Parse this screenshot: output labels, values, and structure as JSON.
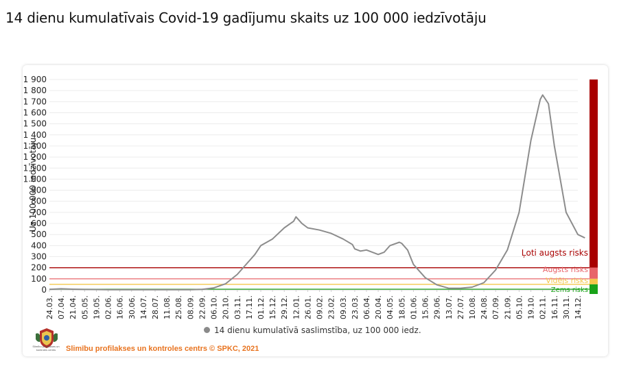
{
  "title": "14 dienu kumulatīvais Covid-19 gadījumu skaits uz 100 000 iedzīvotāju",
  "legend_label": "14 dienu kumulatīvā saslimstība, uz 100 000 iedz.",
  "footer": {
    "source": "Slimību profilakses un kontroles centrs © SPKC, 2021",
    "logo_text": "Slimību profilakses un kontroles centrs"
  },
  "colors": {
    "line": "#8c8c8c",
    "very_high": "#a80000",
    "high": "#e8646a",
    "medium": "#f3c74a",
    "low": "#19a319",
    "footer": "#e8731f"
  },
  "chart_data": {
    "type": "line",
    "title": "14 dienu kumulatīvais Covid-19 gadījumu skaits uz 100 000 iedzīvotāju",
    "ylabel": "Uz 100 000 iedzīvotāju",
    "ylim": [
      0,
      1900
    ],
    "y_ticks": [
      "0",
      "100",
      "200",
      "300",
      "400",
      "500",
      "600",
      "700",
      "800",
      "900",
      "1 000",
      "1 100",
      "1 200",
      "1 300",
      "1 400",
      "1 500",
      "1 600",
      "1 700",
      "1 800",
      "1 900"
    ],
    "x_ticks": [
      "24.03.",
      "07.04.",
      "21.04.",
      "05.05.",
      "19.05.",
      "02.06.",
      "16.06.",
      "30.06.",
      "14.07.",
      "28.07.",
      "11.08.",
      "25.08.",
      "08.09.",
      "22.09.",
      "06.10.",
      "20.10.",
      "03.11.",
      "17.11.",
      "01.12.",
      "15.12.",
      "29.12.",
      "12.01.",
      "26.01.",
      "09.02.",
      "23.02.",
      "09.03.",
      "23.03.",
      "06.04.",
      "20.04.",
      "04.05.",
      "18.05.",
      "01.06.",
      "15.06.",
      "29.06.",
      "13.07.",
      "27.07.",
      "10.08.",
      "24.08.",
      "07.09.",
      "21.09.",
      "05.10.",
      "19.10.",
      "02.11.",
      "16.11.",
      "30.11.",
      "14.12."
    ],
    "grid": true,
    "legend_position": "bottom",
    "series": [
      {
        "name": "14 dienu kumulatīvā saslimstība, uz 100 000 iedz.",
        "points": [
          [
            0,
            5
          ],
          [
            1,
            10
          ],
          [
            2,
            6
          ],
          [
            3,
            4
          ],
          [
            4,
            3
          ],
          [
            5,
            2
          ],
          [
            6,
            2
          ],
          [
            7,
            2
          ],
          [
            8,
            2
          ],
          [
            9,
            2
          ],
          [
            10,
            2
          ],
          [
            11,
            2
          ],
          [
            12,
            2
          ],
          [
            13,
            5
          ],
          [
            14,
            18
          ],
          [
            15,
            55
          ],
          [
            16,
            140
          ],
          [
            17,
            260
          ],
          [
            17.5,
            320
          ],
          [
            18,
            400
          ],
          [
            19,
            460
          ],
          [
            20,
            560
          ],
          [
            20.8,
            620
          ],
          [
            21,
            660
          ],
          [
            21.5,
            600
          ],
          [
            22,
            560
          ],
          [
            23,
            540
          ],
          [
            24,
            510
          ],
          [
            25,
            460
          ],
          [
            25.8,
            410
          ],
          [
            26,
            370
          ],
          [
            26.5,
            350
          ],
          [
            27,
            360
          ],
          [
            28,
            320
          ],
          [
            28.5,
            340
          ],
          [
            29,
            400
          ],
          [
            29.8,
            430
          ],
          [
            30,
            420
          ],
          [
            30.5,
            360
          ],
          [
            31,
            230
          ],
          [
            32,
            110
          ],
          [
            33,
            45
          ],
          [
            34,
            15
          ],
          [
            35,
            15
          ],
          [
            36,
            25
          ],
          [
            37,
            65
          ],
          [
            38,
            180
          ],
          [
            39,
            360
          ],
          [
            40,
            700
          ],
          [
            41,
            1350
          ],
          [
            41.8,
            1720
          ],
          [
            42,
            1760
          ],
          [
            42.5,
            1680
          ],
          [
            43,
            1300
          ],
          [
            44,
            700
          ],
          [
            45,
            500
          ],
          [
            45.6,
            470
          ]
        ]
      }
    ],
    "risk_levels": [
      {
        "label": "Ļoti augsts risks",
        "threshold": 200,
        "color": "#a80000"
      },
      {
        "label": "Augsts risks",
        "threshold": 100,
        "color": "#e8646a"
      },
      {
        "label": "Vidējs risks",
        "threshold": 50,
        "color": "#f3c74a"
      },
      {
        "label": "Zems risks",
        "threshold": 0,
        "color": "#19a319"
      }
    ]
  }
}
